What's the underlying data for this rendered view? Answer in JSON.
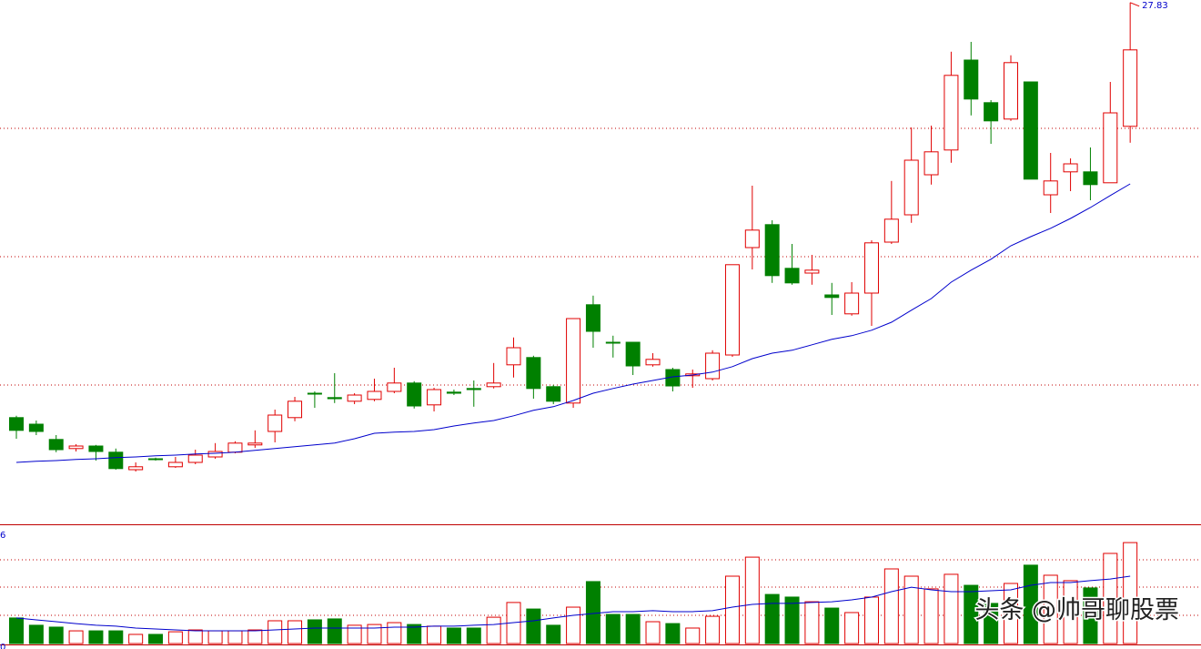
{
  "chart_data": [
    {
      "type": "candlestick",
      "ylim": [
        13.5,
        27.9
      ],
      "up_color": "#e00000",
      "down_color": "#008000",
      "open": [
        16.43,
        16.25,
        15.83,
        15.58,
        15.65,
        15.48,
        15.0,
        15.3,
        15.08,
        15.2,
        15.35,
        15.48,
        15.68,
        16.05,
        16.43,
        17.1,
        16.98,
        16.88,
        16.93,
        17.15,
        17.38,
        16.78,
        17.13,
        17.23,
        17.28,
        17.88,
        18.08,
        17.28,
        16.83,
        19.53,
        18.5,
        18.5,
        17.88,
        17.75,
        17.58,
        17.5,
        18.15,
        21.1,
        21.73,
        20.53,
        20.4,
        19.8,
        19.28,
        19.85,
        21.25,
        22.0,
        23.1,
        23.78,
        26.25,
        25.08,
        24.63,
        25.65,
        22.55,
        23.18,
        23.18,
        22.88,
        24.43
      ],
      "high": [
        16.48,
        16.35,
        15.95,
        15.7,
        15.68,
        15.58,
        15.2,
        15.33,
        15.35,
        15.55,
        15.73,
        15.78,
        16.08,
        16.65,
        17.0,
        17.15,
        17.65,
        17.1,
        17.5,
        17.8,
        17.43,
        17.25,
        17.2,
        17.45,
        17.93,
        18.63,
        18.13,
        17.33,
        19.15,
        19.78,
        18.68,
        18.5,
        18.2,
        17.8,
        17.75,
        18.28,
        20.63,
        22.8,
        21.85,
        21.2,
        20.9,
        20.13,
        20.15,
        21.3,
        22.93,
        24.4,
        24.45,
        26.48,
        26.75,
        25.15,
        26.38,
        25.65,
        23.7,
        23.55,
        23.85,
        25.65,
        27.83
      ],
      "low": [
        15.85,
        15.95,
        15.48,
        15.5,
        15.25,
        15.0,
        14.95,
        15.25,
        15.05,
        15.15,
        15.3,
        15.45,
        15.6,
        15.75,
        16.33,
        16.7,
        16.83,
        16.8,
        16.88,
        17.1,
        16.68,
        16.6,
        17.05,
        16.73,
        17.23,
        17.53,
        16.95,
        16.8,
        16.7,
        18.35,
        18.08,
        17.6,
        17.83,
        17.15,
        17.25,
        17.45,
        18.1,
        20.5,
        20.13,
        20.08,
        20.08,
        19.25,
        19.23,
        18.95,
        21.2,
        21.78,
        22.83,
        23.43,
        24.73,
        23.95,
        24.58,
        22.98,
        22.05,
        22.65,
        22.4,
        22.88,
        23.98
      ],
      "close": [
        16.08,
        16.05,
        15.55,
        15.65,
        15.5,
        15.03,
        15.08,
        15.28,
        15.2,
        15.4,
        15.5,
        15.73,
        15.73,
        16.5,
        16.88,
        17.08,
        16.95,
        17.05,
        17.15,
        17.38,
        16.75,
        17.2,
        17.1,
        17.2,
        17.38,
        18.35,
        17.23,
        16.88,
        19.15,
        18.8,
        18.48,
        17.85,
        18.03,
        17.3,
        17.63,
        18.2,
        20.63,
        21.58,
        20.33,
        20.13,
        20.48,
        19.73,
        19.85,
        21.23,
        21.88,
        23.5,
        23.73,
        25.83,
        25.18,
        24.58,
        26.18,
        22.98,
        22.93,
        23.4,
        22.83,
        24.8,
        26.53
      ],
      "ma": {
        "color": "#0000cc",
        "values": [
          15.2,
          15.23,
          15.25,
          15.28,
          15.3,
          15.33,
          15.35,
          15.38,
          15.4,
          15.43,
          15.45,
          15.48,
          15.53,
          15.58,
          15.63,
          15.68,
          15.73,
          15.85,
          16.0,
          16.03,
          16.05,
          16.1,
          16.2,
          16.28,
          16.35,
          16.48,
          16.63,
          16.73,
          16.9,
          17.1,
          17.23,
          17.35,
          17.45,
          17.55,
          17.6,
          17.68,
          17.83,
          18.05,
          18.2,
          18.28,
          18.43,
          18.58,
          18.68,
          18.83,
          19.05,
          19.38,
          19.7,
          20.15,
          20.48,
          20.78,
          21.15,
          21.4,
          21.63,
          21.9,
          22.2,
          22.53,
          22.85
        ]
      }
    },
    {
      "type": "volume",
      "ylim": [
        0,
        6
      ],
      "yticks": [
        0,
        6
      ],
      "values": [
        1.37,
        0.98,
        0.88,
        0.68,
        0.68,
        0.68,
        0.49,
        0.49,
        0.63,
        0.73,
        0.68,
        0.68,
        0.73,
        1.22,
        1.22,
        1.27,
        1.32,
        0.98,
        1.02,
        1.12,
        1.02,
        0.93,
        0.83,
        0.83,
        1.41,
        2.2,
        1.85,
        0.98,
        1.95,
        3.32,
        1.56,
        1.56,
        1.17,
        1.07,
        0.83,
        1.46,
        3.61,
        4.63,
        2.63,
        2.49,
        2.24,
        1.9,
        1.66,
        2.49,
        4.0,
        3.61,
        2.93,
        3.71,
        3.12,
        2.15,
        3.22,
        4.2,
        3.66,
        3.37,
        2.98,
        4.83,
        5.41
      ],
      "ma": {
        "color": "#0000cc",
        "values": [
          1.37,
          1.27,
          1.17,
          1.07,
          0.98,
          0.93,
          0.83,
          0.78,
          0.73,
          0.68,
          0.68,
          0.68,
          0.68,
          0.73,
          0.78,
          0.83,
          0.83,
          0.83,
          0.83,
          0.88,
          0.88,
          0.93,
          0.93,
          0.98,
          1.02,
          1.12,
          1.22,
          1.37,
          1.51,
          1.61,
          1.71,
          1.71,
          1.76,
          1.71,
          1.71,
          1.76,
          1.95,
          2.1,
          2.15,
          2.15,
          2.2,
          2.24,
          2.34,
          2.49,
          2.78,
          3.02,
          2.88,
          2.78,
          2.78,
          2.83,
          2.88,
          3.12,
          3.27,
          3.27,
          3.37,
          3.46,
          3.61
        ]
      }
    }
  ],
  "watermark": "头条 @帅哥聊股票"
}
